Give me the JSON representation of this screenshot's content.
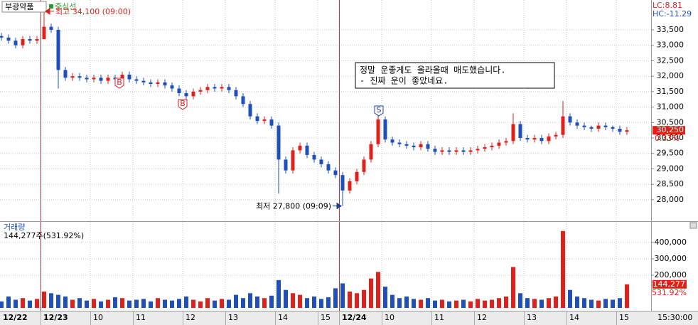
{
  "chart_data": {
    "type": "candlestick",
    "title": "부광약품",
    "indicator": "중심선",
    "info": [
      "LC:8.81",
      "HC:-11.29"
    ],
    "categories": [
      "12/22",
      null,
      null,
      null,
      null,
      null,
      "12/23",
      null,
      null,
      null,
      null,
      null,
      null,
      "10",
      null,
      null,
      null,
      null,
      null,
      "11",
      null,
      null,
      null,
      null,
      null,
      null,
      "12",
      null,
      null,
      null,
      null,
      null,
      "13",
      null,
      null,
      null,
      null,
      null,
      null,
      "14",
      null,
      null,
      null,
      null,
      null,
      "15",
      null,
      null,
      "12/24",
      null,
      null,
      null,
      null,
      null,
      "10",
      null,
      null,
      null,
      null,
      null,
      null,
      "11",
      null,
      null,
      null,
      null,
      null,
      "12",
      null,
      null,
      null,
      null,
      null,
      null,
      "13",
      null,
      null,
      null,
      null,
      null,
      "14",
      null,
      null,
      null,
      null,
      null,
      null,
      "15",
      null
    ],
    "open": [
      33300,
      33250,
      33150,
      33000,
      33200,
      33150,
      33200,
      33600,
      33500,
      32200,
      31950,
      32000,
      31950,
      31900,
      31950,
      31850,
      31950,
      31900,
      32050,
      31900,
      31850,
      31800,
      31750,
      31800,
      31700,
      31600,
      31450,
      31350,
      31500,
      31550,
      31650,
      31600,
      31650,
      31550,
      31350,
      31100,
      30700,
      30550,
      30600,
      30400,
      29300,
      28950,
      29600,
      29750,
      29450,
      29300,
      29150,
      28950,
      28800,
      28300,
      28600,
      28900,
      29300,
      29800,
      30600,
      29950,
      29850,
      29800,
      29750,
      29700,
      29800,
      29650,
      29550,
      29600,
      29550,
      29600,
      29550,
      29600,
      29650,
      29700,
      29750,
      29850,
      29900,
      30450,
      30000,
      29950,
      30000,
      29900,
      30050,
      30100,
      30700,
      30500,
      30400,
      30350,
      30300,
      30400,
      30350,
      30300,
      30200
    ],
    "high": [
      33400,
      33350,
      33250,
      33300,
      33300,
      33300,
      34100,
      33700,
      33600,
      32300,
      32100,
      32100,
      32050,
      32050,
      32050,
      32050,
      32050,
      32150,
      32150,
      32000,
      31950,
      31900,
      31900,
      31900,
      31800,
      31700,
      31550,
      31600,
      31650,
      31750,
      31750,
      31750,
      31750,
      31650,
      31450,
      31200,
      30800,
      30700,
      30700,
      30500,
      29400,
      29700,
      29850,
      29850,
      29550,
      29400,
      29250,
      29050,
      28900,
      28700,
      29000,
      29400,
      29900,
      30900,
      30700,
      30050,
      29950,
      29900,
      29850,
      29900,
      29900,
      29750,
      29700,
      29700,
      29700,
      29700,
      29700,
      29750,
      29800,
      29850,
      29950,
      30000,
      30800,
      30550,
      30100,
      30100,
      30100,
      30150,
      30200,
      31200,
      30800,
      30600,
      30500,
      30400,
      30500,
      30500,
      30400,
      30400,
      30350
    ],
    "low": [
      33150,
      33050,
      32900,
      32900,
      33050,
      33050,
      33200,
      33400,
      31600,
      31850,
      31850,
      31850,
      31800,
      31800,
      31750,
      31750,
      31800,
      31800,
      31800,
      31750,
      31700,
      31650,
      31650,
      31600,
      31500,
      31350,
      31200,
      31250,
      31400,
      31450,
      31500,
      31500,
      31450,
      31250,
      31000,
      30600,
      30450,
      30450,
      30300,
      28200,
      28850,
      28850,
      29500,
      29350,
      29200,
      29050,
      28850,
      28700,
      27800,
      28200,
      28500,
      28800,
      29200,
      29700,
      29850,
      29750,
      29700,
      29650,
      29600,
      29600,
      29550,
      29450,
      29450,
      29450,
      29450,
      29450,
      29450,
      29500,
      29550,
      29600,
      29650,
      29750,
      29800,
      29900,
      29850,
      29850,
      29800,
      29800,
      29950,
      30000,
      30400,
      30300,
      30250,
      30200,
      30200,
      30250,
      30200,
      30100,
      30100
    ],
    "close": [
      33250,
      33150,
      33000,
      33200,
      33150,
      33200,
      33600,
      33500,
      32200,
      31950,
      32000,
      31950,
      31900,
      31950,
      31850,
      31950,
      31900,
      32050,
      31900,
      31850,
      31800,
      31750,
      31800,
      31700,
      31600,
      31450,
      31350,
      31500,
      31550,
      31650,
      31600,
      31650,
      31550,
      31350,
      31100,
      30700,
      30550,
      30600,
      30400,
      29300,
      28950,
      29600,
      29750,
      29450,
      29300,
      29150,
      28950,
      28800,
      28300,
      28600,
      28900,
      29300,
      29800,
      30600,
      29950,
      29850,
      29800,
      29750,
      29700,
      29800,
      29650,
      29550,
      29600,
      29550,
      29600,
      29550,
      29600,
      29650,
      29700,
      29750,
      29850,
      29900,
      30450,
      30000,
      29950,
      30000,
      29900,
      30050,
      30100,
      30700,
      30500,
      30400,
      30350,
      30300,
      30400,
      30350,
      30300,
      30200,
      30250
    ],
    "up_color": "#e0201b",
    "down_color": "#1f4fbf",
    "separator_color": "#c83232",
    "ylim": [
      27330,
      34420
    ],
    "yticks": [
      {
        "value": 28000,
        "label": "28,000"
      },
      {
        "value": 28500,
        "label": "28,500"
      },
      {
        "value": 29000,
        "label": "29,000"
      },
      {
        "value": 29500,
        "label": "29,500"
      },
      {
        "value": 30000,
        "label": "30,000"
      },
      {
        "value": 30500,
        "label": "30,500"
      },
      {
        "value": 31000,
        "label": "31,000"
      },
      {
        "value": 31500,
        "label": "31,500"
      },
      {
        "value": 32000,
        "label": "32,000"
      },
      {
        "value": 32500,
        "label": "32,500"
      },
      {
        "value": 33000,
        "label": "33,000"
      },
      {
        "value": 33500,
        "label": "33,500"
      }
    ],
    "grid": true,
    "high_label": "최고 34,100 (09:00)",
    "low_label": "최저 27,800 (09:09)",
    "annotation": [
      "정말 운좋게도 올라올때 매도했습니다.",
      "- 진짜 운이 좋았네요."
    ],
    "trade_marks": [
      "B",
      "B",
      "S"
    ],
    "price_tag": "30,250",
    "change": "0.33%",
    "volume": {
      "title": "거래량",
      "summary": "144,277주(531.92%)",
      "values": [
        40000,
        70000,
        50000,
        60000,
        45000,
        55000,
        100000,
        90000,
        80000,
        70000,
        50000,
        60000,
        45000,
        55000,
        40000,
        50000,
        65000,
        60000,
        45000,
        50000,
        55000,
        40000,
        60000,
        50000,
        45000,
        55000,
        70000,
        50000,
        40000,
        60000,
        45000,
        55000,
        50000,
        80000,
        60000,
        90000,
        70000,
        60000,
        75000,
        170000,
        110000,
        90000,
        80000,
        60000,
        70000,
        55000,
        65000,
        120000,
        150000,
        100000,
        90000,
        110000,
        180000,
        220000,
        130000,
        80000,
        60000,
        70000,
        55000,
        50000,
        60000,
        45000,
        50000,
        40000,
        45000,
        50000,
        40000,
        55000,
        45000,
        50000,
        60000,
        70000,
        250000,
        90000,
        60000,
        55000,
        50000,
        60000,
        70000,
        470000,
        110000,
        70000,
        60000,
        50000,
        45000,
        55000,
        50000,
        60000,
        144277
      ],
      "ylim": [
        0,
        517000
      ],
      "yticks": [
        {
          "value": 200000,
          "label": "200,000"
        },
        {
          "value": 300000,
          "label": "300,000"
        },
        {
          "value": 400000,
          "label": "400,000"
        }
      ],
      "tag": "144,277",
      "tag_change": "531.92%"
    },
    "time_label": "15:30:00"
  }
}
